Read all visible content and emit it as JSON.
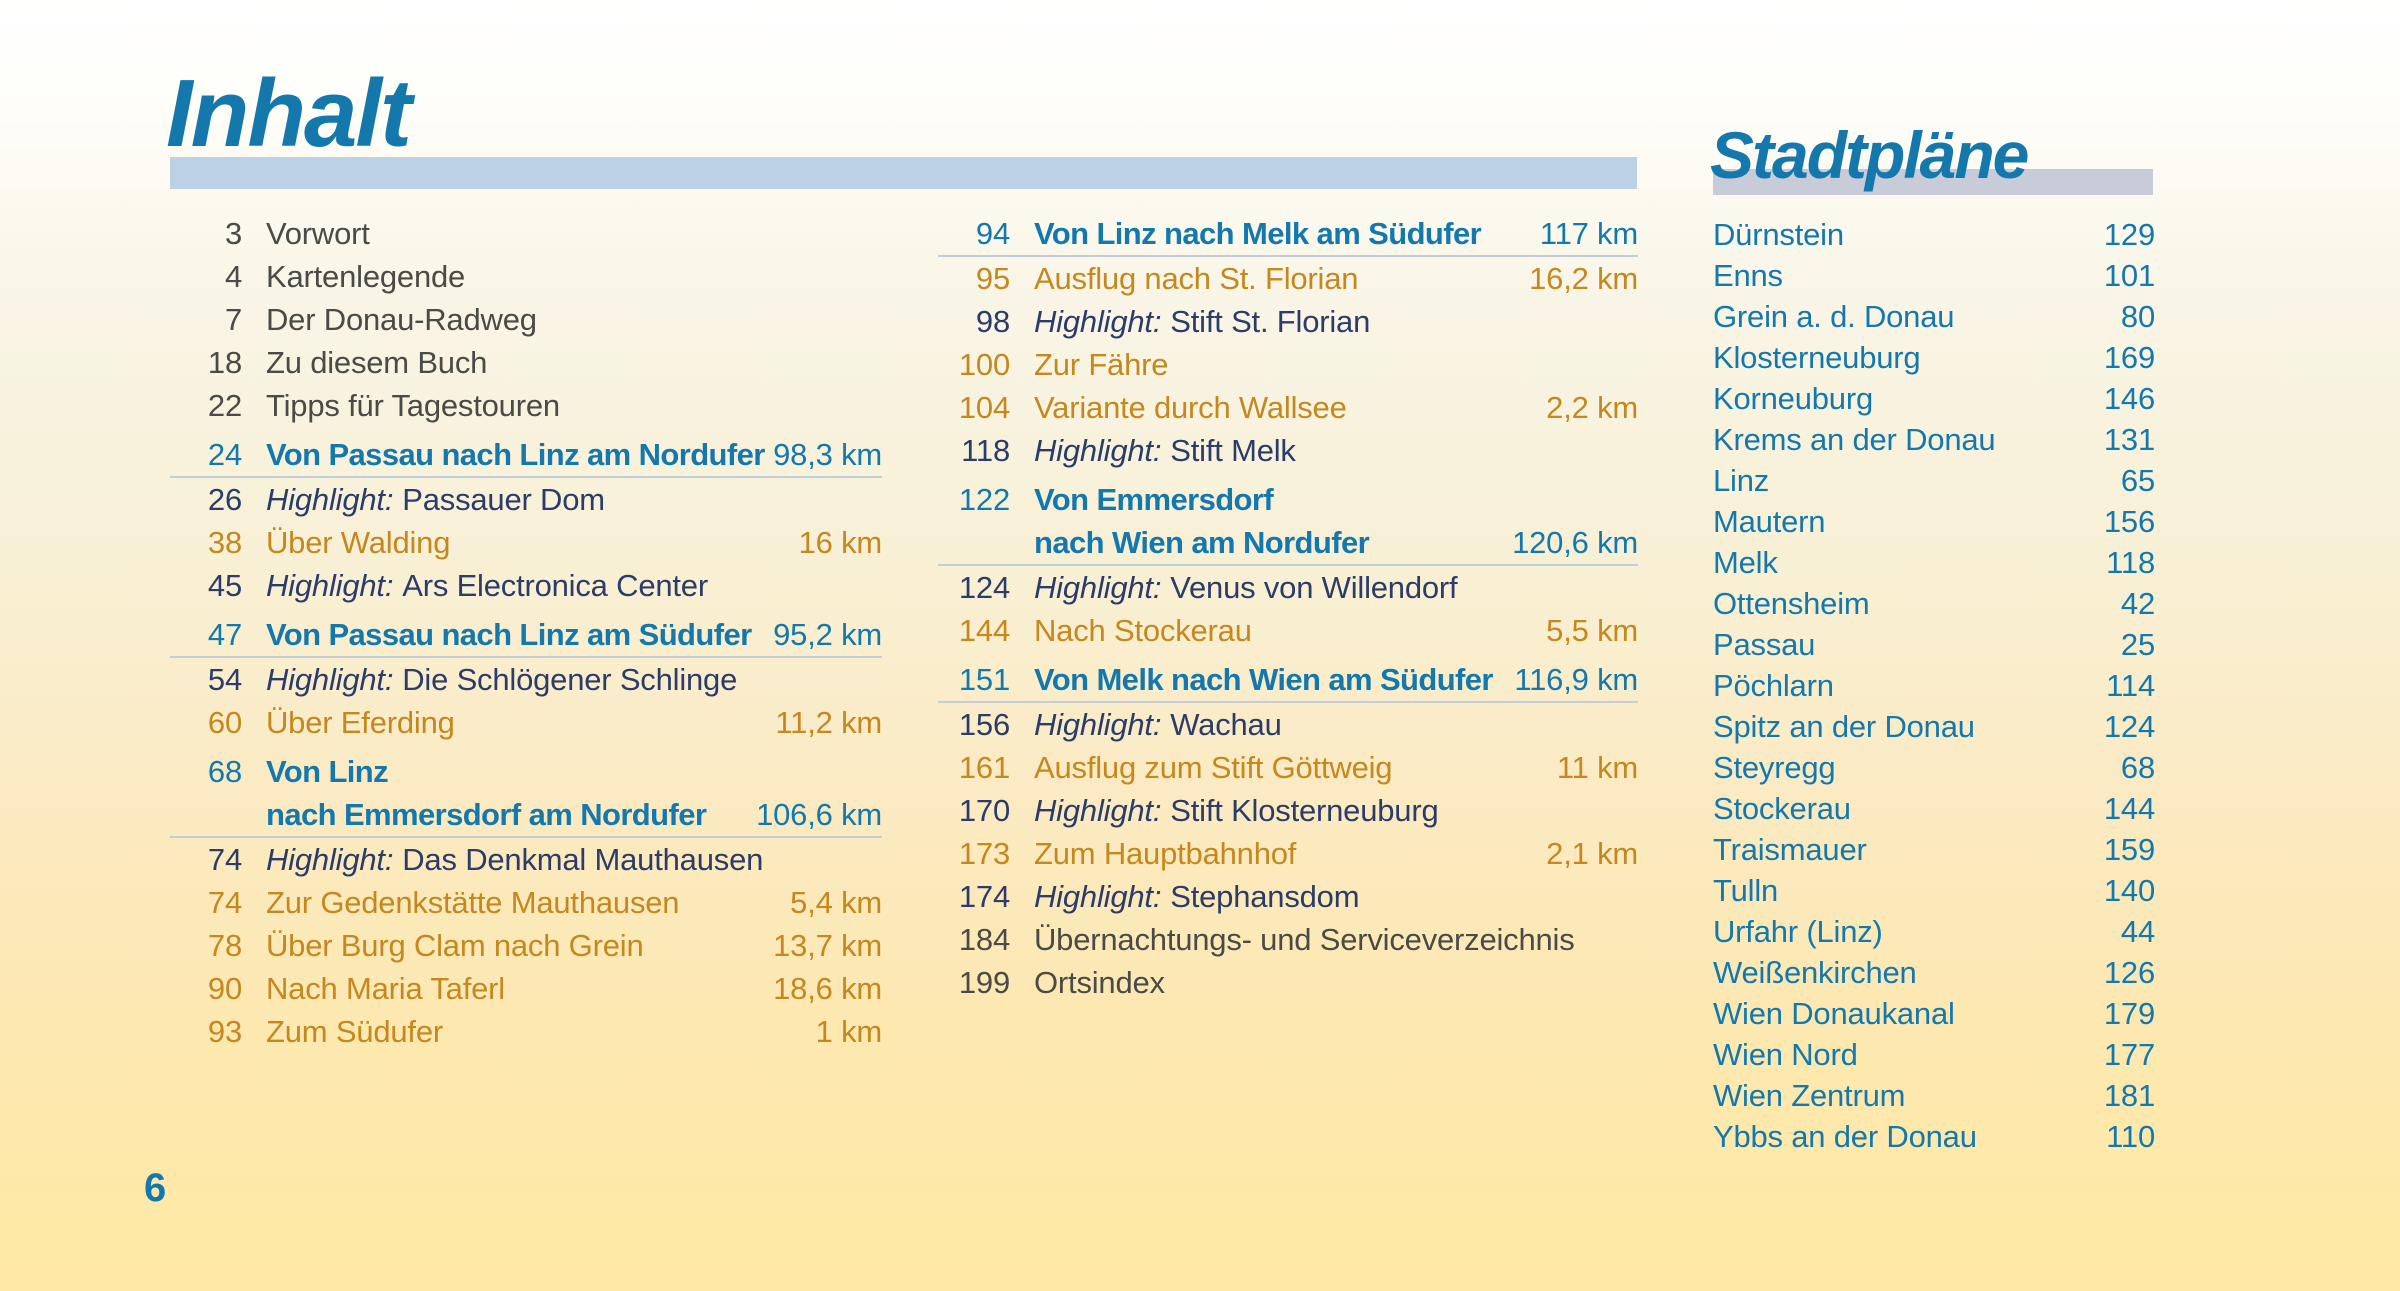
{
  "page": {
    "number": "6"
  },
  "labels": {
    "highlight_prefix": "Highlight:"
  },
  "colors": {
    "accent_blue": "#1478ad",
    "highlight_navy": "#2b3c68",
    "variant_orange": "#c4881e",
    "plain_text": "#4a4a46",
    "inhalt_bar": "#bdd1e4",
    "stadtplaene_bar": "#c7ccd8",
    "heading_underline": "#c2cdda",
    "background_bottom": "#ffe9a4"
  },
  "inhalt": {
    "title": "Inhalt",
    "left_groups": [
      [
        {
          "type": "plain",
          "page": "3",
          "text": "Vorwort"
        },
        {
          "type": "plain",
          "page": "4",
          "text": "Kartenlegende"
        },
        {
          "type": "plain",
          "page": "7",
          "text": "Der Donau-Radweg"
        },
        {
          "type": "plain",
          "page": "18",
          "text": "Zu diesem Buch"
        },
        {
          "type": "plain",
          "page": "22",
          "text": "Tipps für Tagestouren"
        }
      ],
      [
        {
          "type": "section",
          "page": "24",
          "text": "Von Passau nach Linz am Nordufer",
          "km": "98,3 km"
        },
        {
          "type": "highlight",
          "page": "26",
          "text": "Passauer Dom"
        },
        {
          "type": "variant",
          "page": "38",
          "text": "Über Walding",
          "km": "16 km"
        },
        {
          "type": "highlight",
          "page": "45",
          "text": "Ars Electronica Center"
        }
      ],
      [
        {
          "type": "section",
          "page": "47",
          "text": "Von Passau nach Linz am Südufer",
          "km": "95,2 km"
        },
        {
          "type": "highlight",
          "page": "54",
          "text": "Die Schlögener Schlinge"
        },
        {
          "type": "variant",
          "page": "60",
          "text": "Über Eferding",
          "km": "11,2 km"
        }
      ],
      [
        {
          "type": "section",
          "page": "68",
          "text": "Von Linz",
          "line2": "nach Emmersdorf am Nordufer",
          "km": "106,6 km"
        },
        {
          "type": "highlight",
          "page": "74",
          "text": "Das Denkmal Mauthausen"
        },
        {
          "type": "variant",
          "page": "74",
          "text": "Zur Gedenkstätte Mauthausen",
          "km": "5,4 km"
        },
        {
          "type": "variant",
          "page": "78",
          "text": "Über Burg Clam nach Grein",
          "km": "13,7 km"
        },
        {
          "type": "variant",
          "page": "90",
          "text": "Nach Maria Taferl",
          "km": "18,6 km"
        },
        {
          "type": "variant",
          "page": "93",
          "text": "Zum Südufer",
          "km": "1 km"
        }
      ]
    ],
    "middle_groups": [
      [
        {
          "type": "section",
          "page": "94",
          "text": "Von Linz nach Melk am Südufer",
          "km": "117 km"
        },
        {
          "type": "variant",
          "page": "95",
          "text": "Ausflug nach St. Florian",
          "km": "16,2 km"
        },
        {
          "type": "highlight",
          "page": "98",
          "text": "Stift St. Florian"
        },
        {
          "type": "variant",
          "page": "100",
          "text": "Zur Fähre"
        },
        {
          "type": "variant",
          "page": "104",
          "text": "Variante durch Wallsee",
          "km": "2,2 km"
        },
        {
          "type": "highlight",
          "page": "118",
          "text": "Stift Melk"
        }
      ],
      [
        {
          "type": "section",
          "page": "122",
          "text": "Von Emmersdorf",
          "line2": "nach Wien am Nordufer",
          "km": "120,6 km"
        },
        {
          "type": "highlight",
          "page": "124",
          "text": "Venus von Willendorf"
        },
        {
          "type": "variant",
          "page": "144",
          "text": "Nach Stockerau",
          "km": "5,5 km"
        }
      ],
      [
        {
          "type": "section",
          "page": "151",
          "text": "Von Melk nach Wien am Südufer",
          "km": "116,9 km"
        },
        {
          "type": "highlight",
          "page": "156",
          "text": "Wachau"
        },
        {
          "type": "variant",
          "page": "161",
          "text": "Ausflug zum Stift Göttweig",
          "km": "11 km"
        },
        {
          "type": "highlight",
          "page": "170",
          "text": "Stift Klosterneuburg"
        },
        {
          "type": "variant",
          "page": "173",
          "text": "Zum Hauptbahnhof",
          "km": "2,1 km"
        },
        {
          "type": "highlight",
          "page": "174",
          "text": "Stephansdom"
        },
        {
          "type": "plain",
          "page": "184",
          "text": "Übernachtungs- und Serviceverzeichnis"
        },
        {
          "type": "plain",
          "page": "199",
          "text": "Ortsindex"
        }
      ]
    ]
  },
  "stadtplaene": {
    "title": "Stadtpläne",
    "entries": [
      {
        "name": "Dürnstein",
        "page": "129"
      },
      {
        "name": "Enns",
        "page": "101"
      },
      {
        "name": "Grein a. d. Donau",
        "page": "80"
      },
      {
        "name": "Klosterneuburg",
        "page": "169"
      },
      {
        "name": "Korneuburg",
        "page": "146"
      },
      {
        "name": "Krems an der Donau",
        "page": "131"
      },
      {
        "name": "Linz",
        "page": "65"
      },
      {
        "name": "Mautern",
        "page": "156"
      },
      {
        "name": "Melk",
        "page": "118"
      },
      {
        "name": "Ottensheim",
        "page": "42"
      },
      {
        "name": "Passau",
        "page": "25"
      },
      {
        "name": "Pöchlarn",
        "page": "114"
      },
      {
        "name": "Spitz an der Donau",
        "page": "124"
      },
      {
        "name": "Steyregg",
        "page": "68"
      },
      {
        "name": "Stockerau",
        "page": "144"
      },
      {
        "name": "Traismauer",
        "page": "159"
      },
      {
        "name": "Tulln",
        "page": "140"
      },
      {
        "name": "Urfahr (Linz)",
        "page": "44"
      },
      {
        "name": "Weißenkirchen",
        "page": "126"
      },
      {
        "name": "Wien Donaukanal",
        "page": "179"
      },
      {
        "name": "Wien Nord",
        "page": "177"
      },
      {
        "name": "Wien Zentrum",
        "page": "181"
      },
      {
        "name": "Ybbs an der Donau",
        "page": "110"
      }
    ]
  }
}
